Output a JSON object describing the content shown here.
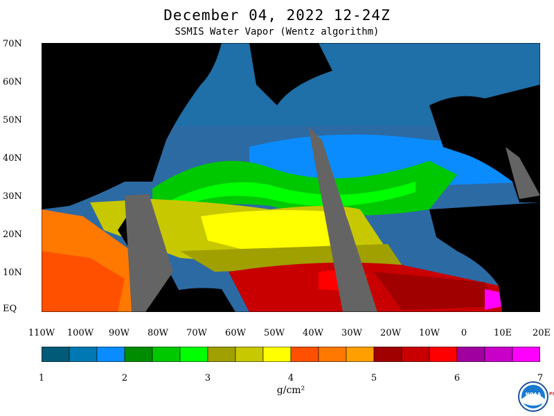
{
  "title": "December 04, 2022 12-24Z",
  "subtitle": "SSMIS Water Vapor (Wentz algorithm)",
  "latitude_labels": [
    "70N",
    "60N",
    "50N",
    "40N",
    "30N",
    "20N",
    "10N",
    "EQ"
  ],
  "longitude_labels": [
    "110W",
    "100W",
    "90W",
    "80W",
    "70W",
    "60W",
    "50W",
    "40W",
    "30W",
    "20W",
    "10W",
    "0",
    "10E",
    "20E"
  ],
  "colorbar": {
    "ticks": [
      "1",
      "2",
      "3",
      "4",
      "5",
      "6",
      "7"
    ],
    "units": "g/cm²",
    "colors": [
      "#005a78",
      "#0078b4",
      "#0a8cff",
      "#008c00",
      "#00c800",
      "#00ff00",
      "#a0a000",
      "#c8c800",
      "#ffff00",
      "#ff5000",
      "#ff7800",
      "#ffa000",
      "#a00000",
      "#c80000",
      "#ff0000",
      "#a000a0",
      "#c800c8",
      "#ff00ff"
    ]
  },
  "logo": {
    "text": "NOAA",
    "side_text": "PSL"
  },
  "map_colors": {
    "land": "#000000",
    "missing_swath": "#646464",
    "dry": "#2c6aa4",
    "ocean_mid": "#1f6fa8"
  }
}
